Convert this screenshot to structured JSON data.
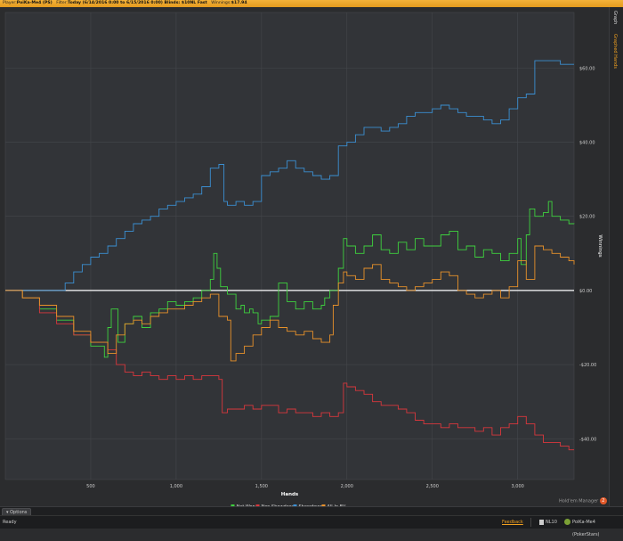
{
  "header": {
    "player_label": "Player:",
    "player": "PoiKa-Me4 (PS)",
    "filter_label": "Filter:",
    "filter": "Today (6/14/2016 0:00 to 6/15/2016 0:00) Blinds: $10NL Fast",
    "winnings_label": "Winnings:",
    "winnings": "$17.94"
  },
  "side_tabs": {
    "graph": "Graph",
    "graphed_hands": "Graphed Hands"
  },
  "options_label": "Options",
  "status": {
    "ready": "Ready",
    "feedback": "Feedback",
    "level": "NL10",
    "player": "PoiKa-Me4 (PokerStars)"
  },
  "logo": {
    "text": "Hold'em Manager",
    "badge": "2"
  },
  "colors": {
    "net_won": "#3ed13e",
    "non_showdown": "#d9373c",
    "showdown": "#3b8fd2",
    "all_in_ev": "#e8912a",
    "accent": "#f4b23a"
  },
  "chart_data": {
    "type": "line",
    "xlabel": "Hands",
    "ylabel": "Winnings",
    "xlim": [
      0,
      3330
    ],
    "ylim": [
      -51,
      75
    ],
    "x_ticks": [
      500,
      1000,
      1500,
      2000,
      2500,
      3000
    ],
    "x_tick_labels": [
      "500",
      "1,000",
      "1,500",
      "2,000",
      "2,500",
      "3,000"
    ],
    "y_ticks": [
      -40,
      -20,
      0,
      20,
      40,
      60
    ],
    "y_tick_labels": [
      "-$40.00",
      "-$20.00",
      "$0.00",
      "$20.00",
      "$40.00",
      "$60.00"
    ],
    "grid": true,
    "legend": "bottom-center",
    "series": [
      {
        "name": "Net Won",
        "points": [
          [
            0,
            0
          ],
          [
            100,
            -2
          ],
          [
            200,
            -5
          ],
          [
            300,
            -8
          ],
          [
            400,
            -12
          ],
          [
            500,
            -15
          ],
          [
            580,
            -18
          ],
          [
            600,
            -10
          ],
          [
            620,
            -5
          ],
          [
            660,
            -14
          ],
          [
            700,
            -9
          ],
          [
            750,
            -7
          ],
          [
            800,
            -10
          ],
          [
            850,
            -6
          ],
          [
            900,
            -5
          ],
          [
            950,
            -3
          ],
          [
            1000,
            -4
          ],
          [
            1050,
            -3
          ],
          [
            1100,
            -2
          ],
          [
            1150,
            0
          ],
          [
            1200,
            3
          ],
          [
            1220,
            10
          ],
          [
            1240,
            6
          ],
          [
            1260,
            1
          ],
          [
            1300,
            -1
          ],
          [
            1350,
            -5
          ],
          [
            1380,
            -4
          ],
          [
            1400,
            -6
          ],
          [
            1430,
            -5
          ],
          [
            1450,
            -6
          ],
          [
            1480,
            -9
          ],
          [
            1500,
            -8
          ],
          [
            1550,
            -7
          ],
          [
            1600,
            2
          ],
          [
            1650,
            -3
          ],
          [
            1700,
            -5
          ],
          [
            1750,
            -3
          ],
          [
            1800,
            -5
          ],
          [
            1850,
            -4
          ],
          [
            1870,
            -2
          ],
          [
            1900,
            0
          ],
          [
            1950,
            6
          ],
          [
            1980,
            14
          ],
          [
            2000,
            12
          ],
          [
            2050,
            10
          ],
          [
            2100,
            12
          ],
          [
            2150,
            15
          ],
          [
            2200,
            11
          ],
          [
            2250,
            10
          ],
          [
            2300,
            13
          ],
          [
            2350,
            11
          ],
          [
            2400,
            14
          ],
          [
            2450,
            12
          ],
          [
            2500,
            12
          ],
          [
            2550,
            15
          ],
          [
            2600,
            16
          ],
          [
            2650,
            11
          ],
          [
            2700,
            12
          ],
          [
            2750,
            9
          ],
          [
            2800,
            11
          ],
          [
            2850,
            10
          ],
          [
            2900,
            8
          ],
          [
            2950,
            10
          ],
          [
            3000,
            14
          ],
          [
            3020,
            7
          ],
          [
            3050,
            15
          ],
          [
            3070,
            22
          ],
          [
            3100,
            20
          ],
          [
            3150,
            21
          ],
          [
            3180,
            24
          ],
          [
            3200,
            20
          ],
          [
            3250,
            19
          ],
          [
            3300,
            18
          ],
          [
            3330,
            17.94
          ]
        ]
      },
      {
        "name": "Non Showdown",
        "points": [
          [
            0,
            0
          ],
          [
            100,
            -2
          ],
          [
            200,
            -6
          ],
          [
            300,
            -9
          ],
          [
            400,
            -12
          ],
          [
            500,
            -14
          ],
          [
            600,
            -16
          ],
          [
            650,
            -20
          ],
          [
            700,
            -22
          ],
          [
            750,
            -23
          ],
          [
            800,
            -22
          ],
          [
            850,
            -23
          ],
          [
            900,
            -24
          ],
          [
            950,
            -23
          ],
          [
            1000,
            -24
          ],
          [
            1050,
            -23
          ],
          [
            1100,
            -24
          ],
          [
            1150,
            -23
          ],
          [
            1200,
            -23
          ],
          [
            1250,
            -24
          ],
          [
            1270,
            -33
          ],
          [
            1300,
            -32
          ],
          [
            1350,
            -32
          ],
          [
            1400,
            -31
          ],
          [
            1450,
            -32
          ],
          [
            1500,
            -31
          ],
          [
            1550,
            -31
          ],
          [
            1600,
            -33
          ],
          [
            1650,
            -32
          ],
          [
            1700,
            -33
          ],
          [
            1750,
            -33
          ],
          [
            1800,
            -34
          ],
          [
            1850,
            -33
          ],
          [
            1900,
            -34
          ],
          [
            1950,
            -33
          ],
          [
            1980,
            -25
          ],
          [
            2000,
            -26
          ],
          [
            2050,
            -27
          ],
          [
            2100,
            -28
          ],
          [
            2150,
            -30
          ],
          [
            2200,
            -31
          ],
          [
            2250,
            -31
          ],
          [
            2300,
            -32
          ],
          [
            2350,
            -33
          ],
          [
            2400,
            -35
          ],
          [
            2450,
            -36
          ],
          [
            2500,
            -36
          ],
          [
            2550,
            -37
          ],
          [
            2600,
            -36
          ],
          [
            2650,
            -37
          ],
          [
            2700,
            -37
          ],
          [
            2750,
            -38
          ],
          [
            2800,
            -37
          ],
          [
            2850,
            -39
          ],
          [
            2900,
            -37
          ],
          [
            2950,
            -36
          ],
          [
            3000,
            -34
          ],
          [
            3050,
            -36
          ],
          [
            3100,
            -39
          ],
          [
            3150,
            -41
          ],
          [
            3200,
            -41
          ],
          [
            3250,
            -42
          ],
          [
            3300,
            -43
          ],
          [
            3330,
            -43
          ]
        ]
      },
      {
        "name": "Showdown",
        "points": [
          [
            0,
            0
          ],
          [
            100,
            0
          ],
          [
            200,
            0
          ],
          [
            300,
            0
          ],
          [
            350,
            2
          ],
          [
            400,
            5
          ],
          [
            450,
            7
          ],
          [
            500,
            9
          ],
          [
            550,
            10
          ],
          [
            600,
            12
          ],
          [
            650,
            14
          ],
          [
            700,
            16
          ],
          [
            750,
            18
          ],
          [
            800,
            19
          ],
          [
            850,
            20
          ],
          [
            900,
            22
          ],
          [
            950,
            23
          ],
          [
            1000,
            24
          ],
          [
            1050,
            25
          ],
          [
            1100,
            26
          ],
          [
            1150,
            28
          ],
          [
            1200,
            33
          ],
          [
            1250,
            34
          ],
          [
            1280,
            24
          ],
          [
            1300,
            23
          ],
          [
            1350,
            24
          ],
          [
            1400,
            23
          ],
          [
            1450,
            24
          ],
          [
            1500,
            31
          ],
          [
            1550,
            32
          ],
          [
            1600,
            33
          ],
          [
            1650,
            35
          ],
          [
            1700,
            33
          ],
          [
            1750,
            32
          ],
          [
            1800,
            31
          ],
          [
            1850,
            30
          ],
          [
            1900,
            31
          ],
          [
            1950,
            39
          ],
          [
            2000,
            40
          ],
          [
            2050,
            42
          ],
          [
            2100,
            44
          ],
          [
            2150,
            44
          ],
          [
            2200,
            43
          ],
          [
            2250,
            44
          ],
          [
            2300,
            45
          ],
          [
            2350,
            47
          ],
          [
            2400,
            48
          ],
          [
            2450,
            48
          ],
          [
            2500,
            49
          ],
          [
            2550,
            50
          ],
          [
            2600,
            49
          ],
          [
            2650,
            48
          ],
          [
            2700,
            47
          ],
          [
            2750,
            47
          ],
          [
            2800,
            46
          ],
          [
            2850,
            45
          ],
          [
            2900,
            46
          ],
          [
            2950,
            49
          ],
          [
            3000,
            52
          ],
          [
            3050,
            53
          ],
          [
            3100,
            62
          ],
          [
            3150,
            62
          ],
          [
            3200,
            62
          ],
          [
            3250,
            61
          ],
          [
            3300,
            61
          ],
          [
            3330,
            61
          ]
        ]
      },
      {
        "name": "All-In EV",
        "points": [
          [
            0,
            0
          ],
          [
            100,
            -2
          ],
          [
            200,
            -4
          ],
          [
            300,
            -7
          ],
          [
            400,
            -11
          ],
          [
            500,
            -14
          ],
          [
            600,
            -17
          ],
          [
            650,
            -12
          ],
          [
            700,
            -9
          ],
          [
            750,
            -8
          ],
          [
            800,
            -9
          ],
          [
            850,
            -7
          ],
          [
            900,
            -6
          ],
          [
            950,
            -5
          ],
          [
            1000,
            -5
          ],
          [
            1050,
            -4
          ],
          [
            1100,
            -3
          ],
          [
            1150,
            -2
          ],
          [
            1200,
            -1
          ],
          [
            1250,
            -7
          ],
          [
            1300,
            -8
          ],
          [
            1320,
            -19
          ],
          [
            1350,
            -17
          ],
          [
            1400,
            -15
          ],
          [
            1450,
            -12
          ],
          [
            1500,
            -10
          ],
          [
            1550,
            -8
          ],
          [
            1600,
            -10
          ],
          [
            1650,
            -11
          ],
          [
            1700,
            -12
          ],
          [
            1750,
            -11
          ],
          [
            1800,
            -13
          ],
          [
            1850,
            -14
          ],
          [
            1900,
            -12
          ],
          [
            1920,
            -4
          ],
          [
            1950,
            2
          ],
          [
            1980,
            5
          ],
          [
            2000,
            4
          ],
          [
            2050,
            3
          ],
          [
            2100,
            6
          ],
          [
            2150,
            7
          ],
          [
            2200,
            3
          ],
          [
            2250,
            2
          ],
          [
            2300,
            1
          ],
          [
            2350,
            0
          ],
          [
            2400,
            1
          ],
          [
            2450,
            2
          ],
          [
            2500,
            3
          ],
          [
            2550,
            5
          ],
          [
            2600,
            4
          ],
          [
            2650,
            0
          ],
          [
            2700,
            -1
          ],
          [
            2750,
            -2
          ],
          [
            2800,
            -1
          ],
          [
            2850,
            0
          ],
          [
            2900,
            -2
          ],
          [
            2950,
            1
          ],
          [
            3000,
            8
          ],
          [
            3050,
            3
          ],
          [
            3100,
            12
          ],
          [
            3150,
            11
          ],
          [
            3200,
            10
          ],
          [
            3250,
            9
          ],
          [
            3300,
            8
          ],
          [
            3330,
            7
          ]
        ]
      }
    ]
  }
}
